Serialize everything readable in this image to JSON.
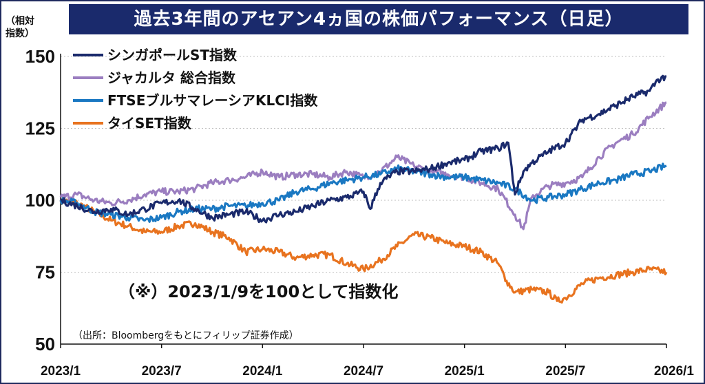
{
  "chart_data": {
    "type": "line",
    "title": "過去3年間のアセアン4ヵ国の株価パフォーマンス（日足）",
    "y_unit_line1": "（相対",
    "y_unit_line2": "指数）",
    "ylim": [
      50,
      150
    ],
    "yticks": [
      50,
      75,
      100,
      125,
      150
    ],
    "xlim": [
      0,
      36
    ],
    "xticks": [
      {
        "label": "2023/1",
        "x": 0
      },
      {
        "label": "2023/7",
        "x": 6
      },
      {
        "label": "2024/1",
        "x": 12
      },
      {
        "label": "2024/7",
        "x": 18
      },
      {
        "label": "2025/1",
        "x": 24
      },
      {
        "label": "2025/7",
        "x": 30
      },
      {
        "label": "2026/1",
        "x": 36
      }
    ],
    "annotation": "（※）2023/1/9を100として指数化",
    "source": "（出所：Bloombergをもとにフィリップ証券作成）",
    "legend_position": "top-left",
    "series": [
      {
        "name": "シンガポールST指数",
        "color": "#1a2a6c",
        "x": [
          0,
          1,
          2,
          3,
          4,
          5,
          6,
          7,
          8,
          9,
          10,
          11,
          12,
          13,
          14,
          15,
          16,
          17,
          18,
          18.4,
          19,
          20,
          21,
          22,
          23,
          24,
          25,
          26,
          26.6,
          27,
          27.5,
          28,
          29,
          30,
          31,
          32,
          33,
          34,
          35,
          35.5,
          36
        ],
        "y": [
          100,
          98,
          96,
          97,
          95,
          97,
          99,
          100,
          97,
          94,
          95,
          96,
          93,
          95,
          96,
          98,
          100,
          101,
          103,
          97,
          106,
          110,
          110,
          111,
          113,
          114,
          117,
          118,
          120,
          102,
          110,
          113,
          117,
          120,
          128,
          130,
          133,
          136,
          138,
          142,
          143
        ]
      },
      {
        "name": "ジャカルタ 総合指数",
        "color": "#9b7ec0",
        "x": [
          0,
          1,
          2,
          3,
          4,
          5,
          6,
          7,
          8,
          9,
          10,
          11,
          12,
          13,
          14,
          15,
          16,
          17,
          18,
          19,
          20,
          21,
          22,
          23,
          24,
          25,
          26,
          27,
          27.5,
          28,
          29,
          30,
          31,
          32,
          33,
          34,
          35,
          36
        ],
        "y": [
          101,
          102,
          100,
          99,
          100,
          102,
          103,
          103,
          104,
          106,
          107,
          108,
          110,
          108,
          109,
          109,
          108,
          110,
          108,
          110,
          115,
          112,
          110,
          109,
          108,
          106,
          104,
          95,
          90,
          101,
          105,
          106,
          108,
          115,
          120,
          123,
          129,
          134
        ]
      },
      {
        "name": "FTSEブルサマレーシアKLCI指数",
        "color": "#1a78c2",
        "x": [
          0,
          1,
          2,
          3,
          4,
          5,
          6,
          7,
          8,
          9,
          10,
          11,
          12,
          13,
          14,
          15,
          16,
          17,
          18,
          19,
          20,
          21,
          22,
          23,
          24,
          25,
          26,
          27,
          28,
          29,
          30,
          31,
          32,
          33,
          34,
          35,
          36
        ],
        "y": [
          100,
          99,
          96,
          95,
          94,
          93,
          94,
          96,
          97,
          97,
          98,
          98,
          99,
          100,
          103,
          104,
          106,
          107,
          108,
          109,
          111,
          110,
          109,
          108,
          108,
          107,
          106,
          104,
          100,
          101,
          102,
          104,
          106,
          107,
          109,
          110,
          112
        ]
      },
      {
        "name": "タイSET指数",
        "color": "#e8731f",
        "x": [
          0,
          1,
          2,
          3,
          4,
          5,
          6,
          7,
          8,
          9,
          10,
          11,
          12,
          13,
          14,
          15,
          16,
          17,
          18,
          19,
          20,
          21,
          22,
          23,
          24,
          25,
          26,
          26.5,
          27,
          28,
          29,
          29.5,
          30,
          31,
          32,
          33,
          34,
          35,
          36
        ],
        "y": [
          100,
          99,
          96,
          93,
          91,
          89,
          89,
          91,
          92,
          89,
          87,
          82,
          83,
          82,
          80,
          81,
          81,
          78,
          76,
          79,
          84,
          88,
          87,
          85,
          84,
          82,
          78,
          72,
          68,
          69,
          68,
          65,
          66,
          71,
          73,
          74,
          75,
          76,
          75
        ]
      }
    ]
  }
}
